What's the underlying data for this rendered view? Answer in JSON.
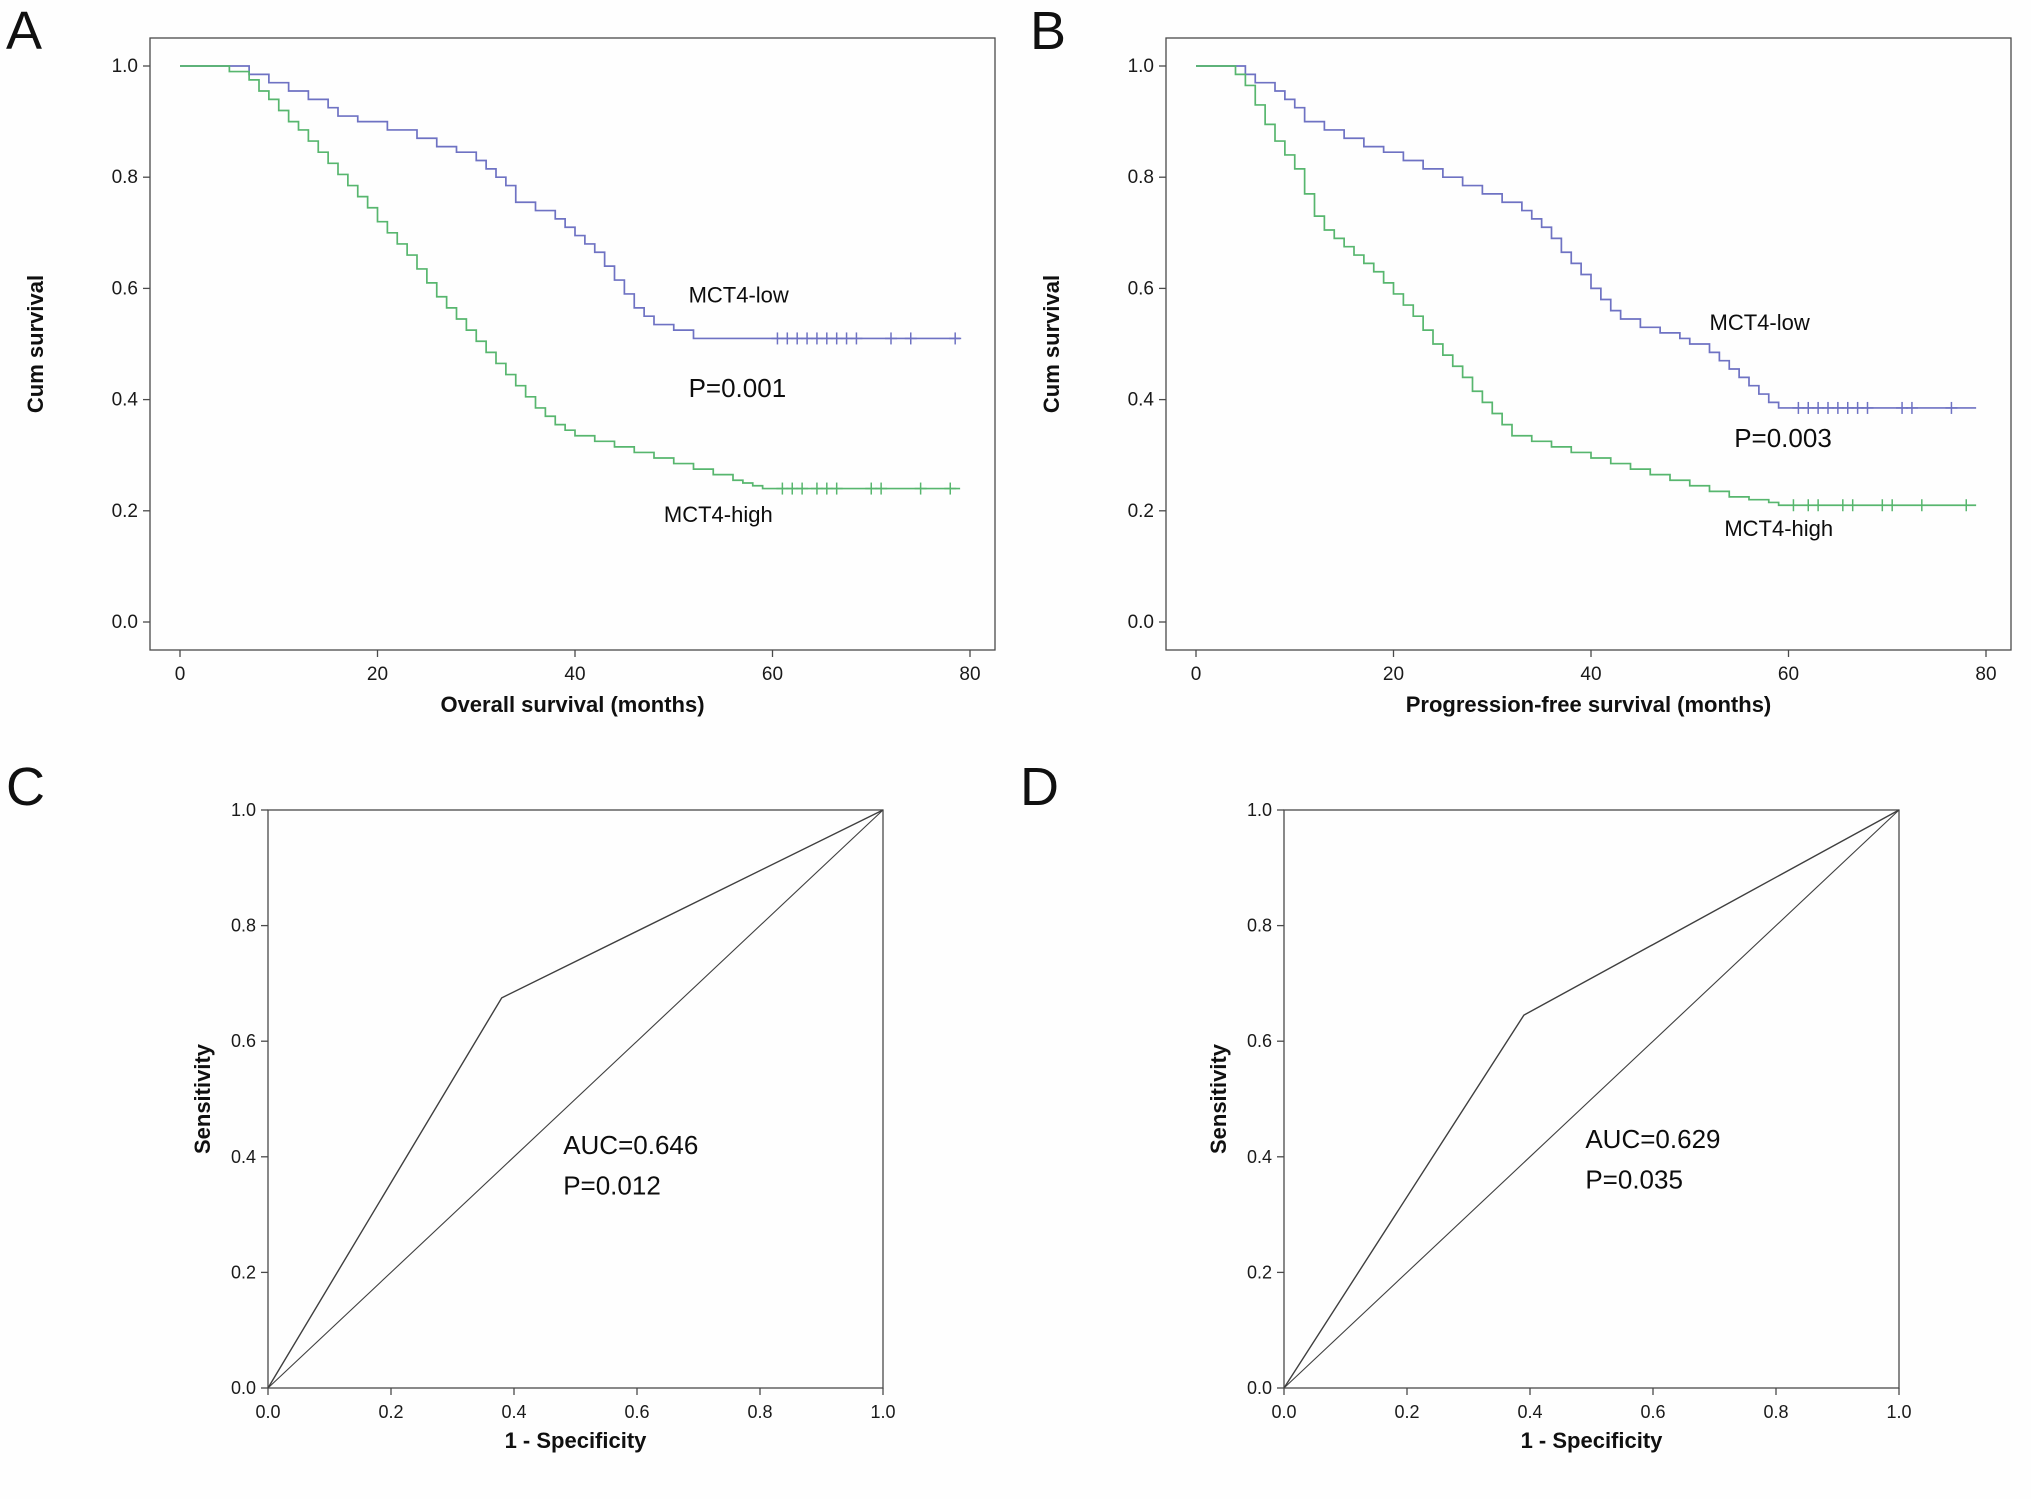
{
  "chart_data": [
    {
      "panel_label": "A",
      "type": "line",
      "subtype": "kaplan-meier",
      "xlabel": "Overall survival (months)",
      "ylabel": "Cum survival",
      "xlim": [
        0,
        80
      ],
      "ylim": [
        0.0,
        1.0
      ],
      "grid": false,
      "xticks": {
        "values": [
          0,
          20,
          40,
          60,
          80
        ],
        "labels": [
          "0",
          "20",
          "40",
          "60",
          "80"
        ]
      },
      "yticks": {
        "values": [
          0.0,
          0.2,
          0.4,
          0.6,
          0.8,
          1.0
        ],
        "labels": [
          "0.0",
          "0.2",
          "0.4",
          "0.6",
          "0.8",
          "1.0"
        ]
      },
      "p_value": 0.001,
      "annotations": [
        {
          "text": "P=0.001",
          "x": 51.5,
          "y": 0.405
        }
      ],
      "series": [
        {
          "name": "MCT4-low",
          "color": "#6e72c3",
          "label_x": 51.5,
          "label_y": 0.575,
          "points": [
            [
              0,
              1.0
            ],
            [
              7,
              0.985
            ],
            [
              9,
              0.97
            ],
            [
              11,
              0.955
            ],
            [
              13,
              0.94
            ],
            [
              15,
              0.925
            ],
            [
              16,
              0.91
            ],
            [
              18,
              0.9
            ],
            [
              21,
              0.885
            ],
            [
              24,
              0.87
            ],
            [
              26,
              0.855
            ],
            [
              28,
              0.845
            ],
            [
              30,
              0.83
            ],
            [
              31,
              0.815
            ],
            [
              32,
              0.8
            ],
            [
              33,
              0.785
            ],
            [
              34,
              0.755
            ],
            [
              36,
              0.74
            ],
            [
              38,
              0.725
            ],
            [
              39,
              0.71
            ],
            [
              40,
              0.695
            ],
            [
              41,
              0.68
            ],
            [
              42,
              0.665
            ],
            [
              43,
              0.64
            ],
            [
              44,
              0.615
            ],
            [
              45,
              0.59
            ],
            [
              46,
              0.565
            ],
            [
              47,
              0.55
            ],
            [
              48,
              0.535
            ],
            [
              50,
              0.525
            ],
            [
              52,
              0.51
            ],
            [
              79,
              0.51
            ]
          ],
          "censors": [
            [
              60.5,
              0.51
            ],
            [
              61.5,
              0.51
            ],
            [
              62.5,
              0.51
            ],
            [
              63.5,
              0.51
            ],
            [
              64.5,
              0.51
            ],
            [
              65.5,
              0.51
            ],
            [
              66.5,
              0.51
            ],
            [
              67.5,
              0.51
            ],
            [
              68.5,
              0.51
            ],
            [
              72,
              0.51
            ],
            [
              74,
              0.51
            ],
            [
              78.5,
              0.51
            ]
          ]
        },
        {
          "name": "MCT4-high",
          "color": "#57b66e",
          "label_x": 49.0,
          "label_y": 0.18,
          "points": [
            [
              0,
              1.0
            ],
            [
              5,
              0.99
            ],
            [
              7,
              0.975
            ],
            [
              8,
              0.955
            ],
            [
              9,
              0.94
            ],
            [
              10,
              0.92
            ],
            [
              11,
              0.9
            ],
            [
              12,
              0.885
            ],
            [
              13,
              0.865
            ],
            [
              14,
              0.845
            ],
            [
              15,
              0.825
            ],
            [
              16,
              0.805
            ],
            [
              17,
              0.785
            ],
            [
              18,
              0.765
            ],
            [
              19,
              0.745
            ],
            [
              20,
              0.72
            ],
            [
              21,
              0.7
            ],
            [
              22,
              0.68
            ],
            [
              23,
              0.66
            ],
            [
              24,
              0.635
            ],
            [
              25,
              0.61
            ],
            [
              26,
              0.585
            ],
            [
              27,
              0.565
            ],
            [
              28,
              0.545
            ],
            [
              29,
              0.525
            ],
            [
              30,
              0.505
            ],
            [
              31,
              0.485
            ],
            [
              32,
              0.465
            ],
            [
              33,
              0.445
            ],
            [
              34,
              0.425
            ],
            [
              35,
              0.405
            ],
            [
              36,
              0.385
            ],
            [
              37,
              0.37
            ],
            [
              38,
              0.355
            ],
            [
              39,
              0.345
            ],
            [
              40,
              0.335
            ],
            [
              42,
              0.325
            ],
            [
              44,
              0.315
            ],
            [
              46,
              0.305
            ],
            [
              48,
              0.295
            ],
            [
              50,
              0.285
            ],
            [
              52,
              0.275
            ],
            [
              54,
              0.265
            ],
            [
              56,
              0.255
            ],
            [
              57,
              0.25
            ],
            [
              58,
              0.245
            ],
            [
              59,
              0.24
            ],
            [
              79,
              0.24
            ]
          ],
          "censors": [
            [
              61,
              0.24
            ],
            [
              62,
              0.24
            ],
            [
              63,
              0.24
            ],
            [
              64.5,
              0.24
            ],
            [
              65.5,
              0.24
            ],
            [
              66.5,
              0.24
            ],
            [
              70,
              0.24
            ],
            [
              71,
              0.24
            ],
            [
              75,
              0.24
            ],
            [
              78,
              0.24
            ]
          ]
        }
      ]
    },
    {
      "panel_label": "B",
      "type": "line",
      "subtype": "kaplan-meier",
      "xlabel": "Progression-free survival (months)",
      "ylabel": "Cum survival",
      "xlim": [
        0,
        80
      ],
      "ylim": [
        0.0,
        1.0
      ],
      "grid": false,
      "xticks": {
        "values": [
          0,
          20,
          40,
          60,
          80
        ],
        "labels": [
          "0",
          "20",
          "40",
          "60",
          "80"
        ]
      },
      "yticks": {
        "values": [
          0.0,
          0.2,
          0.4,
          0.6,
          0.8,
          1.0
        ],
        "labels": [
          "0.0",
          "0.2",
          "0.4",
          "0.6",
          "0.8",
          "1.0"
        ]
      },
      "p_value": 0.003,
      "annotations": [
        {
          "text": "P=0.003",
          "x": 54.5,
          "y": 0.315
        }
      ],
      "series": [
        {
          "name": "MCT4-low",
          "color": "#6e72c3",
          "label_x": 52.0,
          "label_y": 0.525,
          "points": [
            [
              0,
              1.0
            ],
            [
              5,
              0.985
            ],
            [
              6,
              0.97
            ],
            [
              8,
              0.955
            ],
            [
              9,
              0.94
            ],
            [
              10,
              0.925
            ],
            [
              11,
              0.9
            ],
            [
              13,
              0.885
            ],
            [
              15,
              0.87
            ],
            [
              17,
              0.855
            ],
            [
              19,
              0.845
            ],
            [
              21,
              0.83
            ],
            [
              23,
              0.815
            ],
            [
              25,
              0.8
            ],
            [
              27,
              0.785
            ],
            [
              29,
              0.77
            ],
            [
              31,
              0.755
            ],
            [
              33,
              0.74
            ],
            [
              34,
              0.725
            ],
            [
              35,
              0.71
            ],
            [
              36,
              0.69
            ],
            [
              37,
              0.665
            ],
            [
              38,
              0.645
            ],
            [
              39,
              0.625
            ],
            [
              40,
              0.6
            ],
            [
              41,
              0.58
            ],
            [
              42,
              0.56
            ],
            [
              43,
              0.545
            ],
            [
              45,
              0.53
            ],
            [
              47,
              0.52
            ],
            [
              49,
              0.51
            ],
            [
              50,
              0.5
            ],
            [
              52,
              0.485
            ],
            [
              53,
              0.47
            ],
            [
              54,
              0.455
            ],
            [
              55,
              0.44
            ],
            [
              56,
              0.425
            ],
            [
              57,
              0.41
            ],
            [
              58,
              0.395
            ],
            [
              59,
              0.385
            ],
            [
              79,
              0.385
            ]
          ],
          "censors": [
            [
              61,
              0.385
            ],
            [
              62,
              0.385
            ],
            [
              63,
              0.385
            ],
            [
              64,
              0.385
            ],
            [
              65,
              0.385
            ],
            [
              66,
              0.385
            ],
            [
              67,
              0.385
            ],
            [
              68,
              0.385
            ],
            [
              71.5,
              0.385
            ],
            [
              72.5,
              0.385
            ],
            [
              76.5,
              0.385
            ]
          ]
        },
        {
          "name": "MCT4-high",
          "color": "#57b66e",
          "label_x": 53.5,
          "label_y": 0.155,
          "points": [
            [
              0,
              1.0
            ],
            [
              4,
              0.985
            ],
            [
              5,
              0.965
            ],
            [
              6,
              0.93
            ],
            [
              7,
              0.895
            ],
            [
              8,
              0.865
            ],
            [
              9,
              0.84
            ],
            [
              10,
              0.815
            ],
            [
              11,
              0.77
            ],
            [
              12,
              0.73
            ],
            [
              13,
              0.705
            ],
            [
              14,
              0.69
            ],
            [
              15,
              0.675
            ],
            [
              16,
              0.66
            ],
            [
              17,
              0.645
            ],
            [
              18,
              0.63
            ],
            [
              19,
              0.61
            ],
            [
              20,
              0.59
            ],
            [
              21,
              0.57
            ],
            [
              22,
              0.55
            ],
            [
              23,
              0.525
            ],
            [
              24,
              0.5
            ],
            [
              25,
              0.48
            ],
            [
              26,
              0.46
            ],
            [
              27,
              0.44
            ],
            [
              28,
              0.415
            ],
            [
              29,
              0.395
            ],
            [
              30,
              0.375
            ],
            [
              31,
              0.355
            ],
            [
              32,
              0.335
            ],
            [
              34,
              0.325
            ],
            [
              36,
              0.315
            ],
            [
              38,
              0.305
            ],
            [
              40,
              0.295
            ],
            [
              42,
              0.285
            ],
            [
              44,
              0.275
            ],
            [
              46,
              0.265
            ],
            [
              48,
              0.255
            ],
            [
              50,
              0.245
            ],
            [
              52,
              0.235
            ],
            [
              54,
              0.225
            ],
            [
              56,
              0.22
            ],
            [
              58,
              0.215
            ],
            [
              59,
              0.21
            ],
            [
              79,
              0.21
            ]
          ],
          "censors": [
            [
              60.5,
              0.21
            ],
            [
              62,
              0.21
            ],
            [
              63,
              0.21
            ],
            [
              65.5,
              0.21
            ],
            [
              66.5,
              0.21
            ],
            [
              69.5,
              0.21
            ],
            [
              70.5,
              0.21
            ],
            [
              73.5,
              0.21
            ],
            [
              78,
              0.21
            ]
          ]
        }
      ]
    },
    {
      "panel_label": "C",
      "type": "line",
      "subtype": "roc",
      "xlabel": "1 - Specificity",
      "ylabel": "Sensitivity",
      "xlim": [
        0.0,
        1.0
      ],
      "ylim": [
        0.0,
        1.0
      ],
      "grid": false,
      "xticks": {
        "values": [
          0.0,
          0.2,
          0.4,
          0.6,
          0.8,
          1.0
        ],
        "labels": [
          "0.0",
          "0.2",
          "0.4",
          "0.6",
          "0.8",
          "1.0"
        ]
      },
      "yticks": {
        "values": [
          0.0,
          0.2,
          0.4,
          0.6,
          0.8,
          1.0
        ],
        "labels": [
          "0.0",
          "0.2",
          "0.4",
          "0.6",
          "0.8",
          "1.0"
        ]
      },
      "auc": 0.646,
      "p_value": 0.012,
      "line_color": "#3f3f3f",
      "curve": [
        [
          0,
          0
        ],
        [
          0.38,
          0.675
        ],
        [
          1,
          1
        ]
      ],
      "reference": [
        [
          0,
          0
        ],
        [
          1,
          1
        ]
      ],
      "annotations": [
        {
          "text": "AUC=0.646",
          "x": 0.48,
          "y": 0.405
        },
        {
          "text": "P=0.012",
          "x": 0.48,
          "y": 0.335
        }
      ]
    },
    {
      "panel_label": "D",
      "type": "line",
      "subtype": "roc",
      "xlabel": "1 - Specificity",
      "ylabel": "Sensitivity",
      "xlim": [
        0.0,
        1.0
      ],
      "ylim": [
        0.0,
        1.0
      ],
      "grid": false,
      "xticks": {
        "values": [
          0.0,
          0.2,
          0.4,
          0.6,
          0.8,
          1.0
        ],
        "labels": [
          "0.0",
          "0.2",
          "0.4",
          "0.6",
          "0.8",
          "1.0"
        ]
      },
      "yticks": {
        "values": [
          0.0,
          0.2,
          0.4,
          0.6,
          0.8,
          1.0
        ],
        "labels": [
          "0.0",
          "0.2",
          "0.4",
          "0.6",
          "0.8",
          "1.0"
        ]
      },
      "auc": 0.629,
      "p_value": 0.035,
      "line_color": "#3f3f3f",
      "curve": [
        [
          0,
          0
        ],
        [
          0.39,
          0.645
        ],
        [
          1,
          1
        ]
      ],
      "reference": [
        [
          0,
          0
        ],
        [
          1,
          1
        ]
      ],
      "annotations": [
        {
          "text": "AUC=0.629",
          "x": 0.49,
          "y": 0.415
        },
        {
          "text": "P=0.035",
          "x": 0.49,
          "y": 0.345
        }
      ]
    }
  ]
}
